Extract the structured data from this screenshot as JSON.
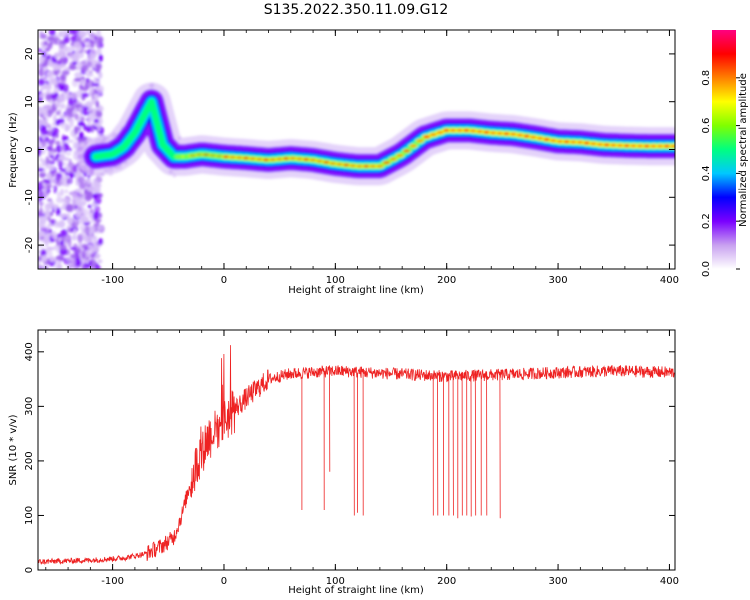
{
  "title": "S135.2022.350.11.09.G12",
  "chart_data": [
    {
      "type": "heatmap",
      "xlabel": "Height of straight line (km)",
      "ylabel": "Frequency (Hz)",
      "xlim": [
        -167,
        405
      ],
      "ylim": [
        -25,
        25
      ],
      "xticks": [
        -100,
        0,
        100,
        200,
        300,
        400
      ],
      "yticks": [
        -20,
        -10,
        0,
        10,
        20
      ],
      "colorbar": {
        "label": "Normalized spectral amplitude",
        "range": [
          0,
          1
        ],
        "ticks": [
          "0.0",
          "0.2",
          "0.4",
          "0.6",
          "0.8"
        ],
        "colormap": [
          "#ffffff",
          "#c8a0f0",
          "#7a00ff",
          "#0000ff",
          "#00c8ff",
          "#00ff80",
          "#80ff00",
          "#ffff00",
          "#ff8000",
          "#ff0000",
          "#ff0080"
        ]
      },
      "ridge": {
        "x": [
          -115,
          -100,
          -90,
          -80,
          -72,
          -65,
          -55,
          -45,
          -35,
          -20,
          0,
          20,
          40,
          60,
          80,
          100,
          120,
          140,
          160,
          180,
          200,
          220,
          240,
          260,
          280,
          300,
          320,
          340,
          360,
          380,
          405
        ],
        "y": [
          -1.5,
          -1,
          0.5,
          3.5,
          7,
          10,
          1,
          -1.5,
          -1.5,
          -1,
          -1.5,
          -1.8,
          -2.2,
          -1.8,
          -2.2,
          -3,
          -3.5,
          -3.5,
          -1,
          2.5,
          4,
          4,
          3.5,
          3.2,
          2.5,
          1.7,
          1.5,
          1,
          0.8,
          0.7,
          0.7
        ]
      }
    },
    {
      "type": "line",
      "xlabel": "Height of straight line (km)",
      "ylabel": "SNR (10 * v/v)",
      "xlim": [
        -167,
        405
      ],
      "ylim": [
        0,
        440
      ],
      "xticks": [
        -100,
        0,
        100,
        200,
        300,
        400
      ],
      "yticks": [
        0,
        100,
        200,
        300,
        400
      ],
      "color": "#ee2222",
      "envelope": {
        "x": [
          -167,
          -120,
          -90,
          -70,
          -55,
          -45,
          -38,
          -30,
          -22,
          -15,
          -5,
          5,
          20,
          40,
          60,
          100,
          150,
          200,
          250,
          300,
          350,
          405
        ],
        "y": [
          15,
          18,
          22,
          30,
          45,
          60,
          100,
          160,
          210,
          240,
          265,
          285,
          315,
          350,
          360,
          365,
          360,
          355,
          358,
          362,
          365,
          362
        ]
      },
      "dropouts": [
        {
          "x": 70,
          "y": 110
        },
        {
          "x": 90,
          "y": 110
        },
        {
          "x": 95,
          "y": 180
        },
        {
          "x": 117,
          "y": 100
        },
        {
          "x": 120,
          "y": 105
        },
        {
          "x": 125,
          "y": 100
        },
        {
          "x": 188,
          "y": 100
        },
        {
          "x": 192,
          "y": 100
        },
        {
          "x": 197,
          "y": 100
        },
        {
          "x": 202,
          "y": 100
        },
        {
          "x": 206,
          "y": 100
        },
        {
          "x": 210,
          "y": 95
        },
        {
          "x": 214,
          "y": 100
        },
        {
          "x": 218,
          "y": 100
        },
        {
          "x": 222,
          "y": 98
        },
        {
          "x": 226,
          "y": 100
        },
        {
          "x": 231,
          "y": 100
        },
        {
          "x": 236,
          "y": 100
        },
        {
          "x": 248,
          "y": 95
        }
      ]
    }
  ]
}
